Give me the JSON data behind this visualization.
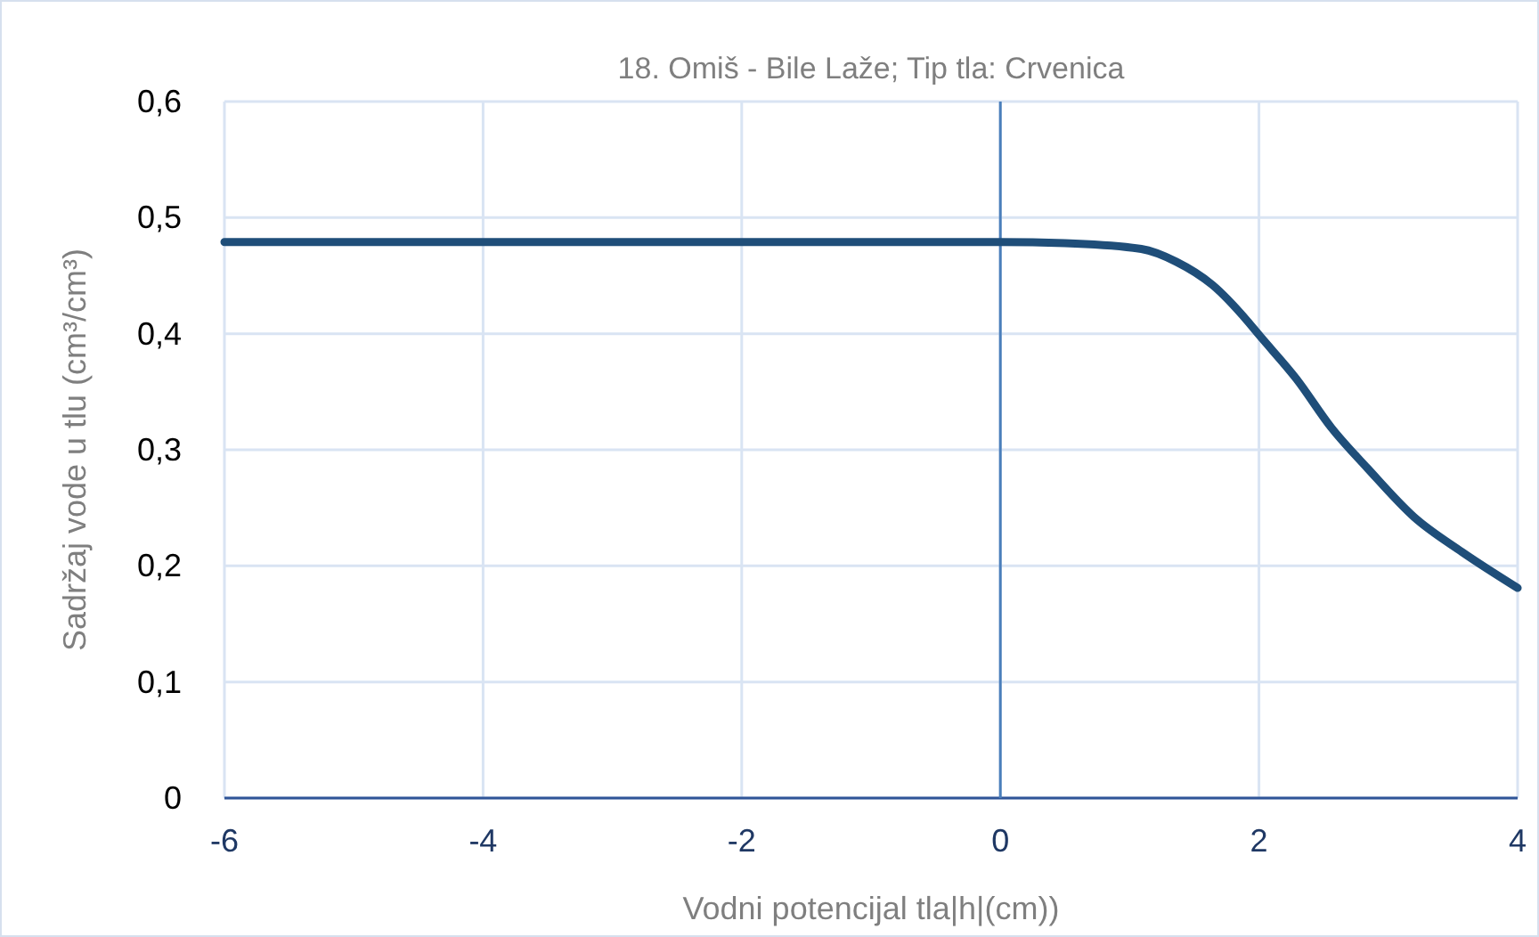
{
  "chart_data": {
    "type": "line",
    "title": "18. Omiš - Bile Laže; Tip tla: Crvenica",
    "xlabel": "Vodni potencijal tla|h|(cm))",
    "ylabel": "Sadržaj vode u tlu  (cm³/cm³)",
    "x": [
      -6,
      -4,
      -2,
      0,
      0.5,
      1.09,
      1.36,
      1.64,
      1.91,
      2,
      2.29,
      2.56,
      2.84,
      3.2,
      3.57,
      4
    ],
    "series": [
      {
        "color": "#1f4e79",
        "values": [
          0.479,
          0.479,
          0.479,
          0.479,
          0.478,
          0.473,
          0.462,
          0.442,
          0.411,
          0.399,
          0.361,
          0.319,
          0.284,
          0.242,
          0.212,
          0.181
        ]
      }
    ],
    "xlim": [
      -6,
      4
    ],
    "xticks": [
      -6,
      -4,
      -2,
      0,
      2,
      4
    ],
    "ylim": [
      0,
      0.6
    ],
    "yticks": [
      0,
      {
        "value": 0.1,
        "label": "0,1"
      },
      {
        "value": 0.2,
        "label": "0,2"
      },
      {
        "value": 0.3,
        "label": "0,3"
      },
      {
        "value": 0.4,
        "label": "0,4"
      },
      {
        "value": 0.5,
        "label": "0,5"
      },
      {
        "value": 0.6,
        "label": "0,6"
      }
    ],
    "ref_lines": [
      {
        "axis": "x",
        "value": 0,
        "color": "#4a7ebb"
      }
    ],
    "grid": true,
    "marker": "none",
    "line_style": "solid"
  }
}
